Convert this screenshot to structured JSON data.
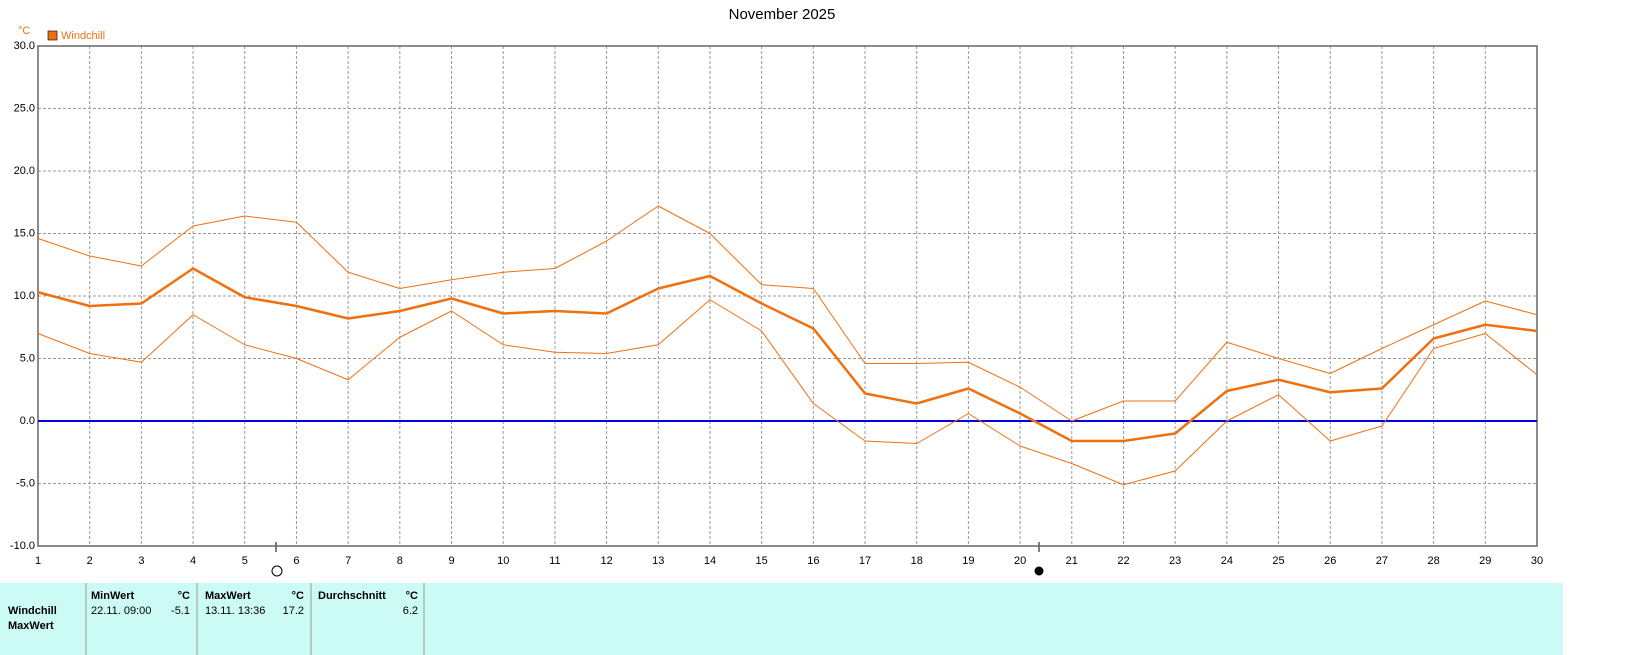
{
  "chart_data": {
    "type": "line",
    "title": "November 2025",
    "y_unit": "°C",
    "x": [
      1,
      2,
      3,
      4,
      5,
      6,
      7,
      8,
      9,
      10,
      11,
      12,
      13,
      14,
      15,
      16,
      17,
      18,
      19,
      20,
      21,
      22,
      23,
      24,
      25,
      26,
      27,
      28,
      29,
      30
    ],
    "xlim": [
      1,
      30
    ],
    "xticks": [
      1,
      2,
      3,
      4,
      5,
      6,
      7,
      8,
      9,
      10,
      11,
      12,
      13,
      14,
      15,
      16,
      17,
      18,
      19,
      20,
      21,
      22,
      23,
      24,
      25,
      26,
      27,
      28,
      29,
      30
    ],
    "ylim": [
      -10,
      30
    ],
    "yticks": [
      {
        "value": -10,
        "label": "-10.0"
      },
      {
        "value": -5,
        "label": "-5.0"
      },
      {
        "value": 0,
        "label": "0.0"
      },
      {
        "value": 5,
        "label": "5.0"
      },
      {
        "value": 10,
        "label": "10.0"
      },
      {
        "value": 15,
        "label": "15.0"
      },
      {
        "value": 20,
        "label": "20.0"
      },
      {
        "value": 25,
        "label": "25.0"
      },
      {
        "value": 30,
        "label": "30.0"
      }
    ],
    "grid": true,
    "zero_line_color": "#0000e0",
    "legend": "top-left",
    "series": [
      {
        "name": "Windchill",
        "color": "#f07010",
        "values": [
          10.3,
          9.2,
          9.4,
          12.2,
          9.9,
          9.2,
          8.2,
          8.8,
          9.8,
          8.6,
          8.8,
          8.6,
          10.6,
          11.6,
          9.4,
          7.4,
          2.2,
          1.4,
          2.6,
          0.6,
          -1.6,
          -1.6,
          -1.0,
          2.4,
          3.3,
          2.3,
          2.6,
          6.6,
          7.7,
          7.2
        ],
        "max": [
          14.6,
          13.2,
          12.4,
          15.6,
          16.4,
          15.9,
          11.9,
          10.6,
          11.3,
          11.9,
          12.2,
          14.4,
          17.2,
          15.0,
          10.9,
          10.6,
          4.6,
          4.6,
          4.7,
          2.7,
          0.0,
          1.6,
          1.6,
          6.3,
          5.0,
          3.8,
          5.8,
          7.7,
          9.6,
          8.5
        ],
        "min": [
          7.0,
          5.4,
          4.7,
          8.5,
          6.1,
          5.0,
          3.3,
          6.7,
          8.8,
          6.1,
          5.5,
          5.4,
          6.1,
          9.7,
          7.2,
          1.4,
          -1.6,
          -1.8,
          0.6,
          -2.0,
          -3.4,
          -5.1,
          -4.0,
          0.0,
          2.1,
          -1.6,
          -0.4,
          5.8,
          7.0,
          3.7
        ]
      }
    ]
  },
  "table": {
    "header": [
      "MinWert",
      "°C",
      "MaxWert",
      "°C",
      "Durchschnitt",
      "°C"
    ],
    "rows": [
      [
        "Windchill",
        "22.11.  09:00",
        -5.1,
        "13.11.  13:36",
        17.2,
        6.2
      ],
      [
        "MaxWert"
      ]
    ]
  }
}
